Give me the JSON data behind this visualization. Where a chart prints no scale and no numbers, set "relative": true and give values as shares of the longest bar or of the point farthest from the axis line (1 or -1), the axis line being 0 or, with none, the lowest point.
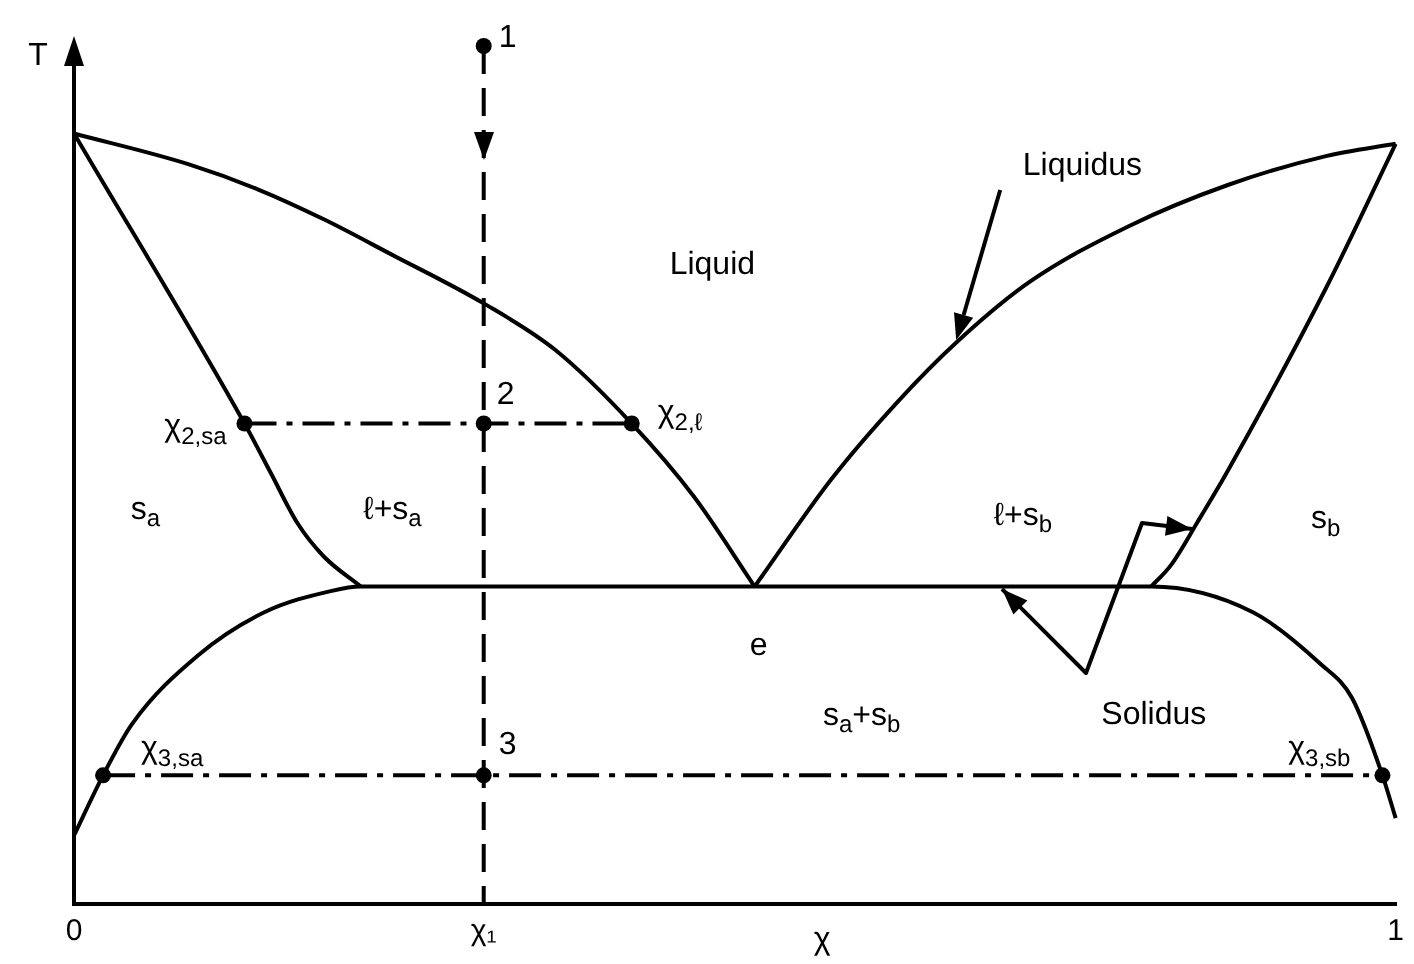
{
  "chart_data": {
    "type": "line",
    "relative": true,
    "xlabel": "χ",
    "ylabel": "T",
    "xlim": [
      0,
      1
    ],
    "xticks": [
      0,
      {
        "value": 0.31,
        "label": "χ₁"
      },
      1
    ],
    "series": [
      {
        "color": "#000000",
        "x": [
          0,
          0.087,
          0.139,
          0.189,
          0.239,
          0.31,
          0.364,
          0.422,
          0.469,
          0.515
        ],
        "values": [
          0.898,
          0.862,
          0.833,
          0.798,
          0.758,
          0.7,
          0.646,
          0.56,
          0.475,
          0.37
        ]
      },
      {
        "color": "#000000",
        "x": [
          0.515,
          0.573,
          0.623,
          0.668,
          0.723,
          0.798,
          0.873,
          0.948,
          1.0
        ],
        "values": [
          0.37,
          0.495,
          0.585,
          0.655,
          0.725,
          0.79,
          0.838,
          0.872,
          0.886
        ]
      },
      {
        "color": "#000000",
        "x": [
          0,
          0.129,
          0.149,
          0.169,
          0.189,
          0.217
        ],
        "values": [
          0.898,
          0.56,
          0.502,
          0.444,
          0.405,
          0.37
        ]
      },
      {
        "color": "#000000",
        "x": [
          0.815,
          0.83,
          0.85,
          0.873,
          0.948,
          1.0
        ],
        "values": [
          0.37,
          0.395,
          0.445,
          0.505,
          0.72,
          0.886
        ]
      },
      {
        "color": "#000000",
        "x": [
          0,
          0.022,
          0.044,
          0.094,
          0.144,
          0.195,
          0.217,
          0.815,
          0.892,
          0.943,
          0.967,
          0.99,
          1.0
        ],
        "values": [
          0.08,
          0.15,
          0.21,
          0.29,
          0.34,
          0.365,
          0.37,
          0.37,
          0.34,
          0.28,
          0.24,
          0.15,
          0.1
        ]
      },
      {
        "color": "#000000",
        "line_style": "dashdot",
        "x": [
          0.129,
          0.422
        ],
        "values": [
          0.56,
          0.56
        ]
      },
      {
        "color": "#000000",
        "line_style": "dashdot",
        "x": [
          0.022,
          0.99
        ],
        "values": [
          0.15,
          0.15
        ]
      },
      {
        "color": "#000000",
        "line_style": "dashed",
        "x": [
          0.31,
          0.31
        ],
        "values": [
          1.0,
          0
        ]
      },
      {
        "type": "scatter",
        "marker": "circle",
        "color": "#000000",
        "x": [
          0.31,
          0.31,
          0.31,
          0.129,
          0.422,
          0.022,
          0.99
        ],
        "values": [
          1.0,
          0.56,
          0.15,
          0.56,
          0.56,
          0.15,
          0.15
        ]
      }
    ],
    "annotations": [
      {
        "text": "1",
        "x": 0.31,
        "y": 1.0
      },
      {
        "text": "2",
        "x": 0.31,
        "y": 0.56
      },
      {
        "text": "3",
        "x": 0.31,
        "y": 0.15
      },
      {
        "text": "χ$_{2,s}$$_{a}$",
        "x": 0.129,
        "y": 0.56
      },
      {
        "text": "χ$_{2,ℓ}$",
        "x": 0.422,
        "y": 0.56
      },
      {
        "text": "χ$_{3,s}$$_{a}$",
        "x": 0.022,
        "y": 0.15
      },
      {
        "text": "χ$_{3,s}$$_{b}$",
        "x": 0.99,
        "y": 0.15
      },
      {
        "text": "e",
        "x": 0.515,
        "y": 0.37
      },
      "Liquid",
      "Liquidus",
      "s$_{a}$",
      "ℓ+s$_{a}$",
      "ℓ+s$_{b}$",
      "s$_{b}$",
      "s$_{a}$+s$_{b}$",
      "Solidus"
    ]
  }
}
